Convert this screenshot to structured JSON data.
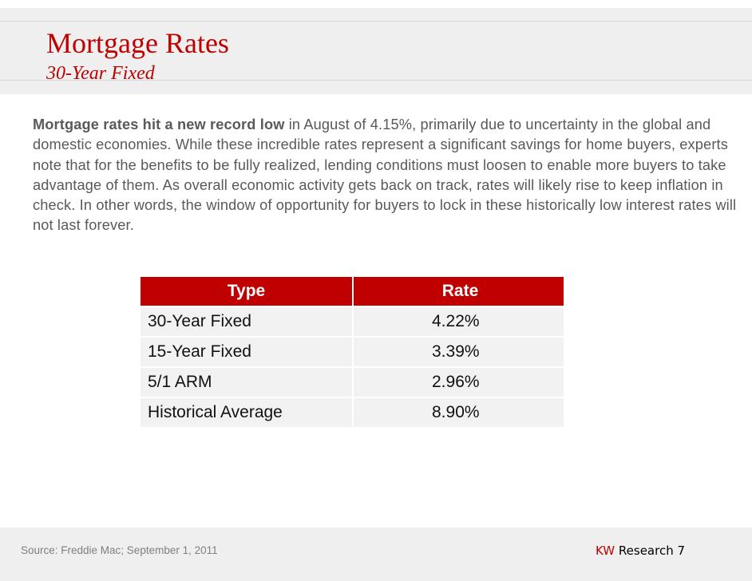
{
  "header": {
    "title": "Mortgage Rates",
    "subtitle": "30-Year Fixed"
  },
  "intro": {
    "bold_lead": "Mortgage rates hit a new record low",
    "text": " in August of 4.15%, primarily due to uncertainty in the global and domestic economies. While these incredible rates represent a significant savings for home buyers, experts note that for the benefits to be fully realized, lending conditions must loosen to enable more buyers to take advantage of them. As overall economic activity gets back on track, rates will likely rise to keep inflation in check. In other words, the window of opportunity for buyers to lock in these historically low interest rates will not last forever."
  },
  "rates_table": {
    "headers": [
      "Type",
      "Rate"
    ],
    "rows": [
      [
        "30-Year Fixed",
        "4.22%"
      ],
      [
        "15-Year Fixed",
        "3.39%"
      ],
      [
        "5/1 ARM",
        "2.96%"
      ],
      [
        "Historical Average",
        "8.90%"
      ]
    ]
  },
  "footer": {
    "source": "Source: Freddie Mac; September 1, 2011",
    "brand_kw": "KW",
    "brand_rest": " Research 7"
  },
  "colors": {
    "accent": "#c00000",
    "band": "#efefef",
    "row_bg": "#f2f2f2"
  }
}
